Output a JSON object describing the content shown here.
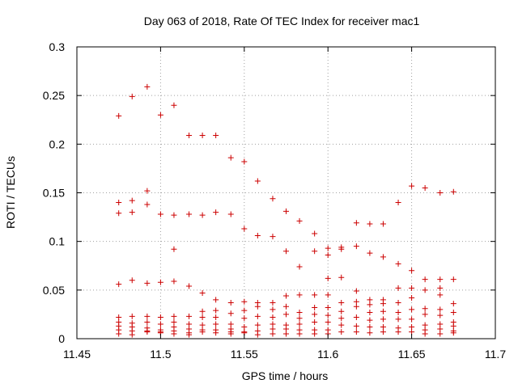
{
  "chart_data": {
    "type": "scatter",
    "title": "Day 063 of 2018, Rate Of TEC Index for receiver mac1",
    "xlabel": "GPS time / hours",
    "ylabel": "ROTI / TECUs",
    "xlim": [
      11.45,
      11.7
    ],
    "ylim": [
      0,
      0.3
    ],
    "x_ticks": [
      "11.45",
      "11.5",
      "11.55",
      "11.6",
      "11.65",
      "11.7"
    ],
    "y_ticks": [
      "0",
      "0.05",
      "0.1",
      "0.15",
      "0.2",
      "0.25",
      "0.3"
    ],
    "grid": true,
    "marker": "+",
    "marker_color": "#cc0000",
    "series": [
      {
        "name": "ROTI",
        "points": [
          [
            11.475,
            0.229
          ],
          [
            11.475,
            0.14
          ],
          [
            11.475,
            0.129
          ],
          [
            11.475,
            0.056
          ],
          [
            11.475,
            0.022
          ],
          [
            11.475,
            0.017
          ],
          [
            11.475,
            0.013
          ],
          [
            11.475,
            0.009
          ],
          [
            11.475,
            0.005
          ],
          [
            11.483,
            0.249
          ],
          [
            11.483,
            0.142
          ],
          [
            11.483,
            0.13
          ],
          [
            11.483,
            0.06
          ],
          [
            11.483,
            0.023
          ],
          [
            11.483,
            0.016
          ],
          [
            11.483,
            0.012
          ],
          [
            11.483,
            0.008
          ],
          [
            11.483,
            0.004
          ],
          [
            11.492,
            0.259
          ],
          [
            11.492,
            0.152
          ],
          [
            11.492,
            0.138
          ],
          [
            11.492,
            0.057
          ],
          [
            11.492,
            0.023
          ],
          [
            11.492,
            0.017
          ],
          [
            11.492,
            0.011
          ],
          [
            11.492,
            0.008
          ],
          [
            11.492,
            0.007
          ],
          [
            11.5,
            0.23
          ],
          [
            11.5,
            0.128
          ],
          [
            11.5,
            0.058
          ],
          [
            11.5,
            0.022
          ],
          [
            11.5,
            0.015
          ],
          [
            11.5,
            0.009
          ],
          [
            11.5,
            0.007
          ],
          [
            11.5,
            0.006
          ],
          [
            11.508,
            0.24
          ],
          [
            11.508,
            0.127
          ],
          [
            11.508,
            0.092
          ],
          [
            11.508,
            0.059
          ],
          [
            11.508,
            0.023
          ],
          [
            11.508,
            0.017
          ],
          [
            11.508,
            0.012
          ],
          [
            11.508,
            0.008
          ],
          [
            11.508,
            0.005
          ],
          [
            11.517,
            0.209
          ],
          [
            11.517,
            0.128
          ],
          [
            11.517,
            0.054
          ],
          [
            11.517,
            0.023
          ],
          [
            11.517,
            0.015
          ],
          [
            11.517,
            0.01
          ],
          [
            11.517,
            0.006
          ],
          [
            11.517,
            0.004
          ],
          [
            11.525,
            0.209
          ],
          [
            11.525,
            0.127
          ],
          [
            11.525,
            0.047
          ],
          [
            11.525,
            0.028
          ],
          [
            11.525,
            0.022
          ],
          [
            11.525,
            0.014
          ],
          [
            11.525,
            0.009
          ],
          [
            11.525,
            0.007
          ],
          [
            11.533,
            0.209
          ],
          [
            11.533,
            0.13
          ],
          [
            11.533,
            0.04
          ],
          [
            11.533,
            0.029
          ],
          [
            11.533,
            0.022
          ],
          [
            11.533,
            0.015
          ],
          [
            11.533,
            0.009
          ],
          [
            11.533,
            0.006
          ],
          [
            11.542,
            0.186
          ],
          [
            11.542,
            0.128
          ],
          [
            11.542,
            0.037
          ],
          [
            11.542,
            0.026
          ],
          [
            11.542,
            0.015
          ],
          [
            11.542,
            0.01
          ],
          [
            11.542,
            0.007
          ],
          [
            11.542,
            0.005
          ],
          [
            11.55,
            0.182
          ],
          [
            11.55,
            0.113
          ],
          [
            11.55,
            0.038
          ],
          [
            11.55,
            0.029
          ],
          [
            11.55,
            0.021
          ],
          [
            11.55,
            0.012
          ],
          [
            11.55,
            0.007
          ],
          [
            11.55,
            0.006
          ],
          [
            11.558,
            0.162
          ],
          [
            11.558,
            0.106
          ],
          [
            11.558,
            0.037
          ],
          [
            11.558,
            0.033
          ],
          [
            11.558,
            0.023
          ],
          [
            11.558,
            0.014
          ],
          [
            11.558,
            0.008
          ],
          [
            11.558,
            0.004
          ],
          [
            11.567,
            0.144
          ],
          [
            11.567,
            0.105
          ],
          [
            11.567,
            0.037
          ],
          [
            11.567,
            0.03
          ],
          [
            11.567,
            0.022
          ],
          [
            11.567,
            0.015
          ],
          [
            11.567,
            0.01
          ],
          [
            11.567,
            0.005
          ],
          [
            11.575,
            0.131
          ],
          [
            11.575,
            0.09
          ],
          [
            11.575,
            0.044
          ],
          [
            11.575,
            0.033
          ],
          [
            11.575,
            0.025
          ],
          [
            11.575,
            0.014
          ],
          [
            11.575,
            0.01
          ],
          [
            11.575,
            0.005
          ],
          [
            11.583,
            0.121
          ],
          [
            11.583,
            0.074
          ],
          [
            11.583,
            0.045
          ],
          [
            11.583,
            0.027
          ],
          [
            11.583,
            0.021
          ],
          [
            11.583,
            0.015
          ],
          [
            11.583,
            0.009
          ],
          [
            11.583,
            0.005
          ],
          [
            11.592,
            0.108
          ],
          [
            11.592,
            0.09
          ],
          [
            11.592,
            0.045
          ],
          [
            11.592,
            0.032
          ],
          [
            11.592,
            0.025
          ],
          [
            11.592,
            0.017
          ],
          [
            11.592,
            0.009
          ],
          [
            11.592,
            0.005
          ],
          [
            11.6,
            0.093
          ],
          [
            11.6,
            0.086
          ],
          [
            11.6,
            0.062
          ],
          [
            11.6,
            0.045
          ],
          [
            11.6,
            0.032
          ],
          [
            11.6,
            0.024
          ],
          [
            11.6,
            0.017
          ],
          [
            11.6,
            0.009
          ],
          [
            11.6,
            0.005
          ],
          [
            11.608,
            0.094
          ],
          [
            11.608,
            0.092
          ],
          [
            11.608,
            0.063
          ],
          [
            11.608,
            0.037
          ],
          [
            11.608,
            0.028
          ],
          [
            11.608,
            0.021
          ],
          [
            11.608,
            0.014
          ],
          [
            11.608,
            0.007
          ],
          [
            11.617,
            0.119
          ],
          [
            11.617,
            0.095
          ],
          [
            11.617,
            0.049
          ],
          [
            11.617,
            0.038
          ],
          [
            11.617,
            0.033
          ],
          [
            11.617,
            0.022
          ],
          [
            11.617,
            0.013
          ],
          [
            11.617,
            0.007
          ],
          [
            11.625,
            0.118
          ],
          [
            11.625,
            0.088
          ],
          [
            11.625,
            0.04
          ],
          [
            11.625,
            0.035
          ],
          [
            11.625,
            0.027
          ],
          [
            11.625,
            0.019
          ],
          [
            11.625,
            0.012
          ],
          [
            11.625,
            0.006
          ],
          [
            11.633,
            0.118
          ],
          [
            11.633,
            0.084
          ],
          [
            11.633,
            0.04
          ],
          [
            11.633,
            0.036
          ],
          [
            11.633,
            0.028
          ],
          [
            11.633,
            0.02
          ],
          [
            11.633,
            0.012
          ],
          [
            11.633,
            0.007
          ],
          [
            11.642,
            0.14
          ],
          [
            11.642,
            0.077
          ],
          [
            11.642,
            0.052
          ],
          [
            11.642,
            0.037
          ],
          [
            11.642,
            0.027
          ],
          [
            11.642,
            0.02
          ],
          [
            11.642,
            0.011
          ],
          [
            11.642,
            0.007
          ],
          [
            11.65,
            0.157
          ],
          [
            11.65,
            0.07
          ],
          [
            11.65,
            0.052
          ],
          [
            11.65,
            0.042
          ],
          [
            11.65,
            0.03
          ],
          [
            11.65,
            0.02
          ],
          [
            11.65,
            0.012
          ],
          [
            11.65,
            0.007
          ],
          [
            11.658,
            0.155
          ],
          [
            11.658,
            0.061
          ],
          [
            11.658,
            0.05
          ],
          [
            11.658,
            0.031
          ],
          [
            11.658,
            0.025
          ],
          [
            11.658,
            0.014
          ],
          [
            11.658,
            0.009
          ],
          [
            11.658,
            0.005
          ],
          [
            11.667,
            0.15
          ],
          [
            11.667,
            0.061
          ],
          [
            11.667,
            0.052
          ],
          [
            11.667,
            0.045
          ],
          [
            11.667,
            0.03
          ],
          [
            11.667,
            0.024
          ],
          [
            11.667,
            0.015
          ],
          [
            11.667,
            0.01
          ],
          [
            11.667,
            0.005
          ],
          [
            11.675,
            0.151
          ],
          [
            11.675,
            0.061
          ],
          [
            11.675,
            0.036
          ],
          [
            11.675,
            0.027
          ],
          [
            11.675,
            0.017
          ],
          [
            11.675,
            0.013
          ],
          [
            11.675,
            0.008
          ],
          [
            11.675,
            0.006
          ]
        ]
      }
    ]
  }
}
